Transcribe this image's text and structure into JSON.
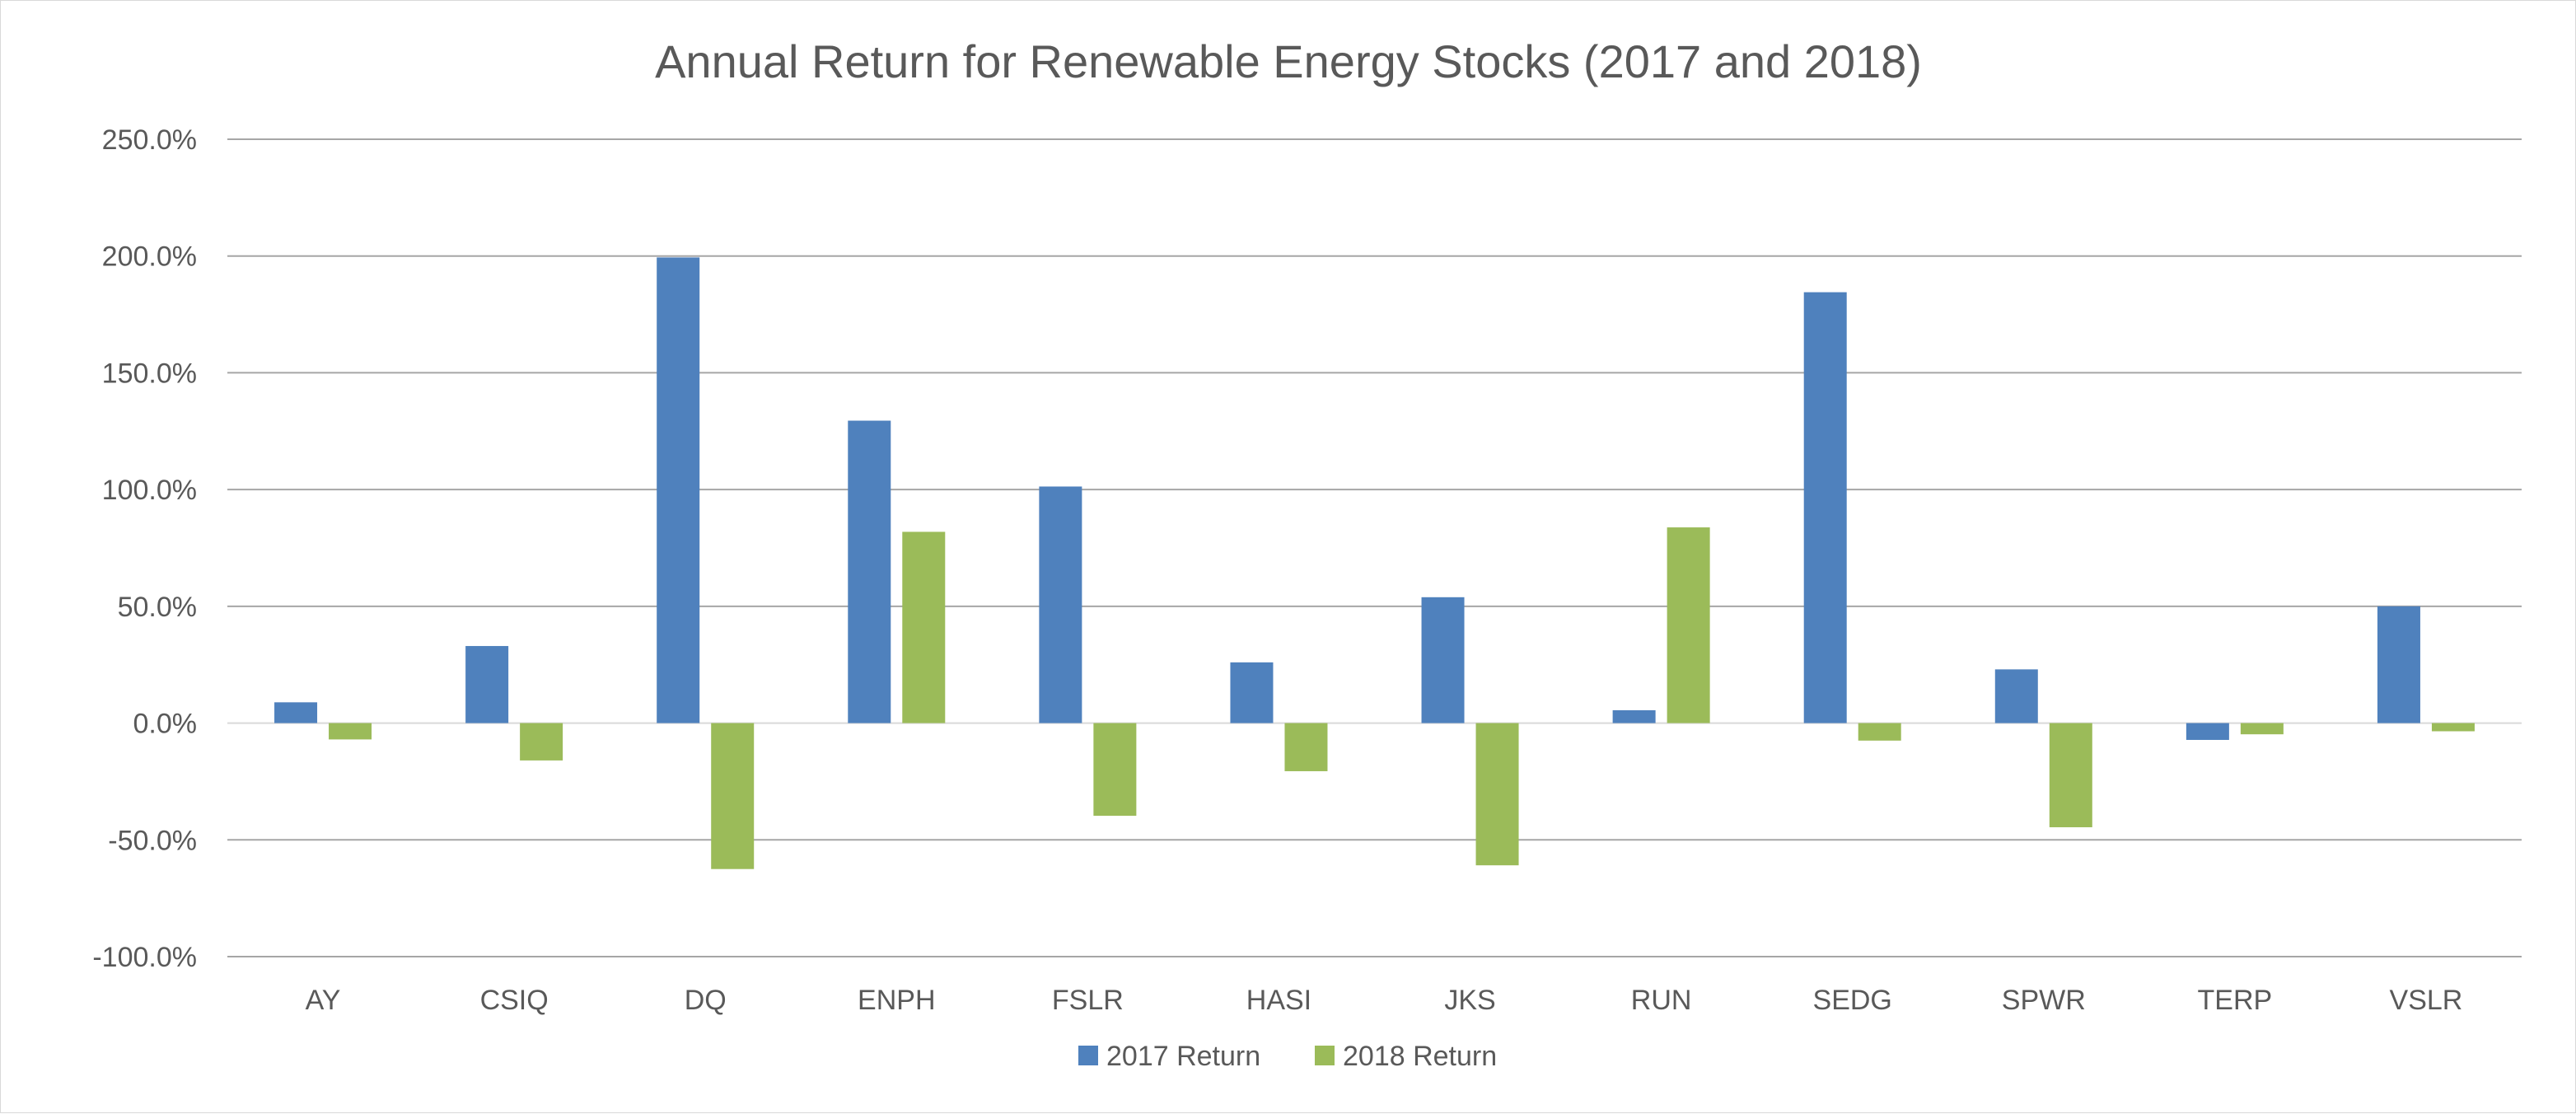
{
  "chart_data": {
    "type": "bar",
    "title": "Annual Return for Renewable Energy Stocks (2017 and 2018)",
    "xlabel": "",
    "ylabel": "",
    "categories": [
      "AY",
      "CSIQ",
      "DQ",
      "ENPH",
      "FSLR",
      "HASI",
      "JKS",
      "RUN",
      "SEDG",
      "SPWR",
      "TERP",
      "VSLR"
    ],
    "series": [
      {
        "name": "2017 Return",
        "color": "#4f81bd",
        "values": [
          8.9,
          33.0,
          199.4,
          129.5,
          101.3,
          26.0,
          53.9,
          5.5,
          184.5,
          23.0,
          -7.2,
          50.0
        ]
      },
      {
        "name": "2018 Return",
        "color": "#9bbb59",
        "values": [
          -7.0,
          -16.0,
          -62.5,
          81.9,
          -39.7,
          -20.6,
          -60.9,
          83.8,
          -7.5,
          -44.6,
          -4.8,
          -3.5
        ]
      }
    ],
    "ylim": [
      -100,
      250
    ],
    "yticks": [
      -100,
      -50,
      0,
      50,
      100,
      150,
      200,
      250
    ],
    "ytick_labels": [
      "-100.0%",
      "-50.0%",
      "0.0%",
      "50.0%",
      "100.0%",
      "150.0%",
      "200.0%",
      "250.0%"
    ],
    "grid": true,
    "legend_position": "bottom"
  }
}
